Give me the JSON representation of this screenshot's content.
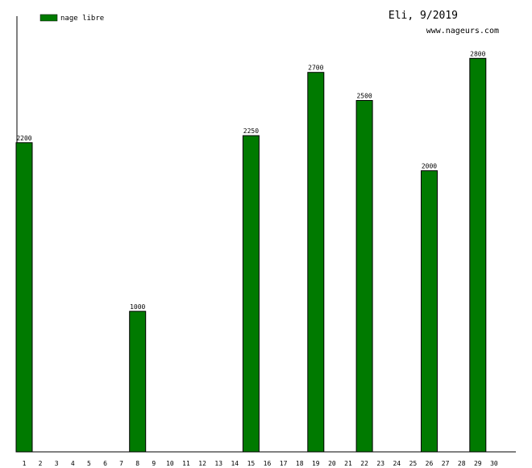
{
  "chart_data": {
    "type": "bar",
    "title": "Eli, 9/2019",
    "subtitle": "www.nageurs.com",
    "xlabel": "",
    "ylabel": "",
    "ylim": [
      0,
      3100
    ],
    "grid": false,
    "legend_position": "top-left",
    "categories": [
      "1",
      "2",
      "3",
      "4",
      "5",
      "6",
      "7",
      "8",
      "9",
      "10",
      "11",
      "12",
      "13",
      "14",
      "15",
      "16",
      "17",
      "18",
      "19",
      "20",
      "21",
      "22",
      "23",
      "24",
      "25",
      "26",
      "27",
      "28",
      "29",
      "30"
    ],
    "series": [
      {
        "name": "nage libre",
        "color": "#007a00",
        "values": [
          2200,
          0,
          0,
          0,
          0,
          0,
          0,
          1000,
          0,
          0,
          0,
          0,
          0,
          0,
          2250,
          0,
          0,
          0,
          2700,
          0,
          0,
          2500,
          0,
          0,
          0,
          2000,
          0,
          0,
          2800,
          0
        ]
      }
    ]
  }
}
